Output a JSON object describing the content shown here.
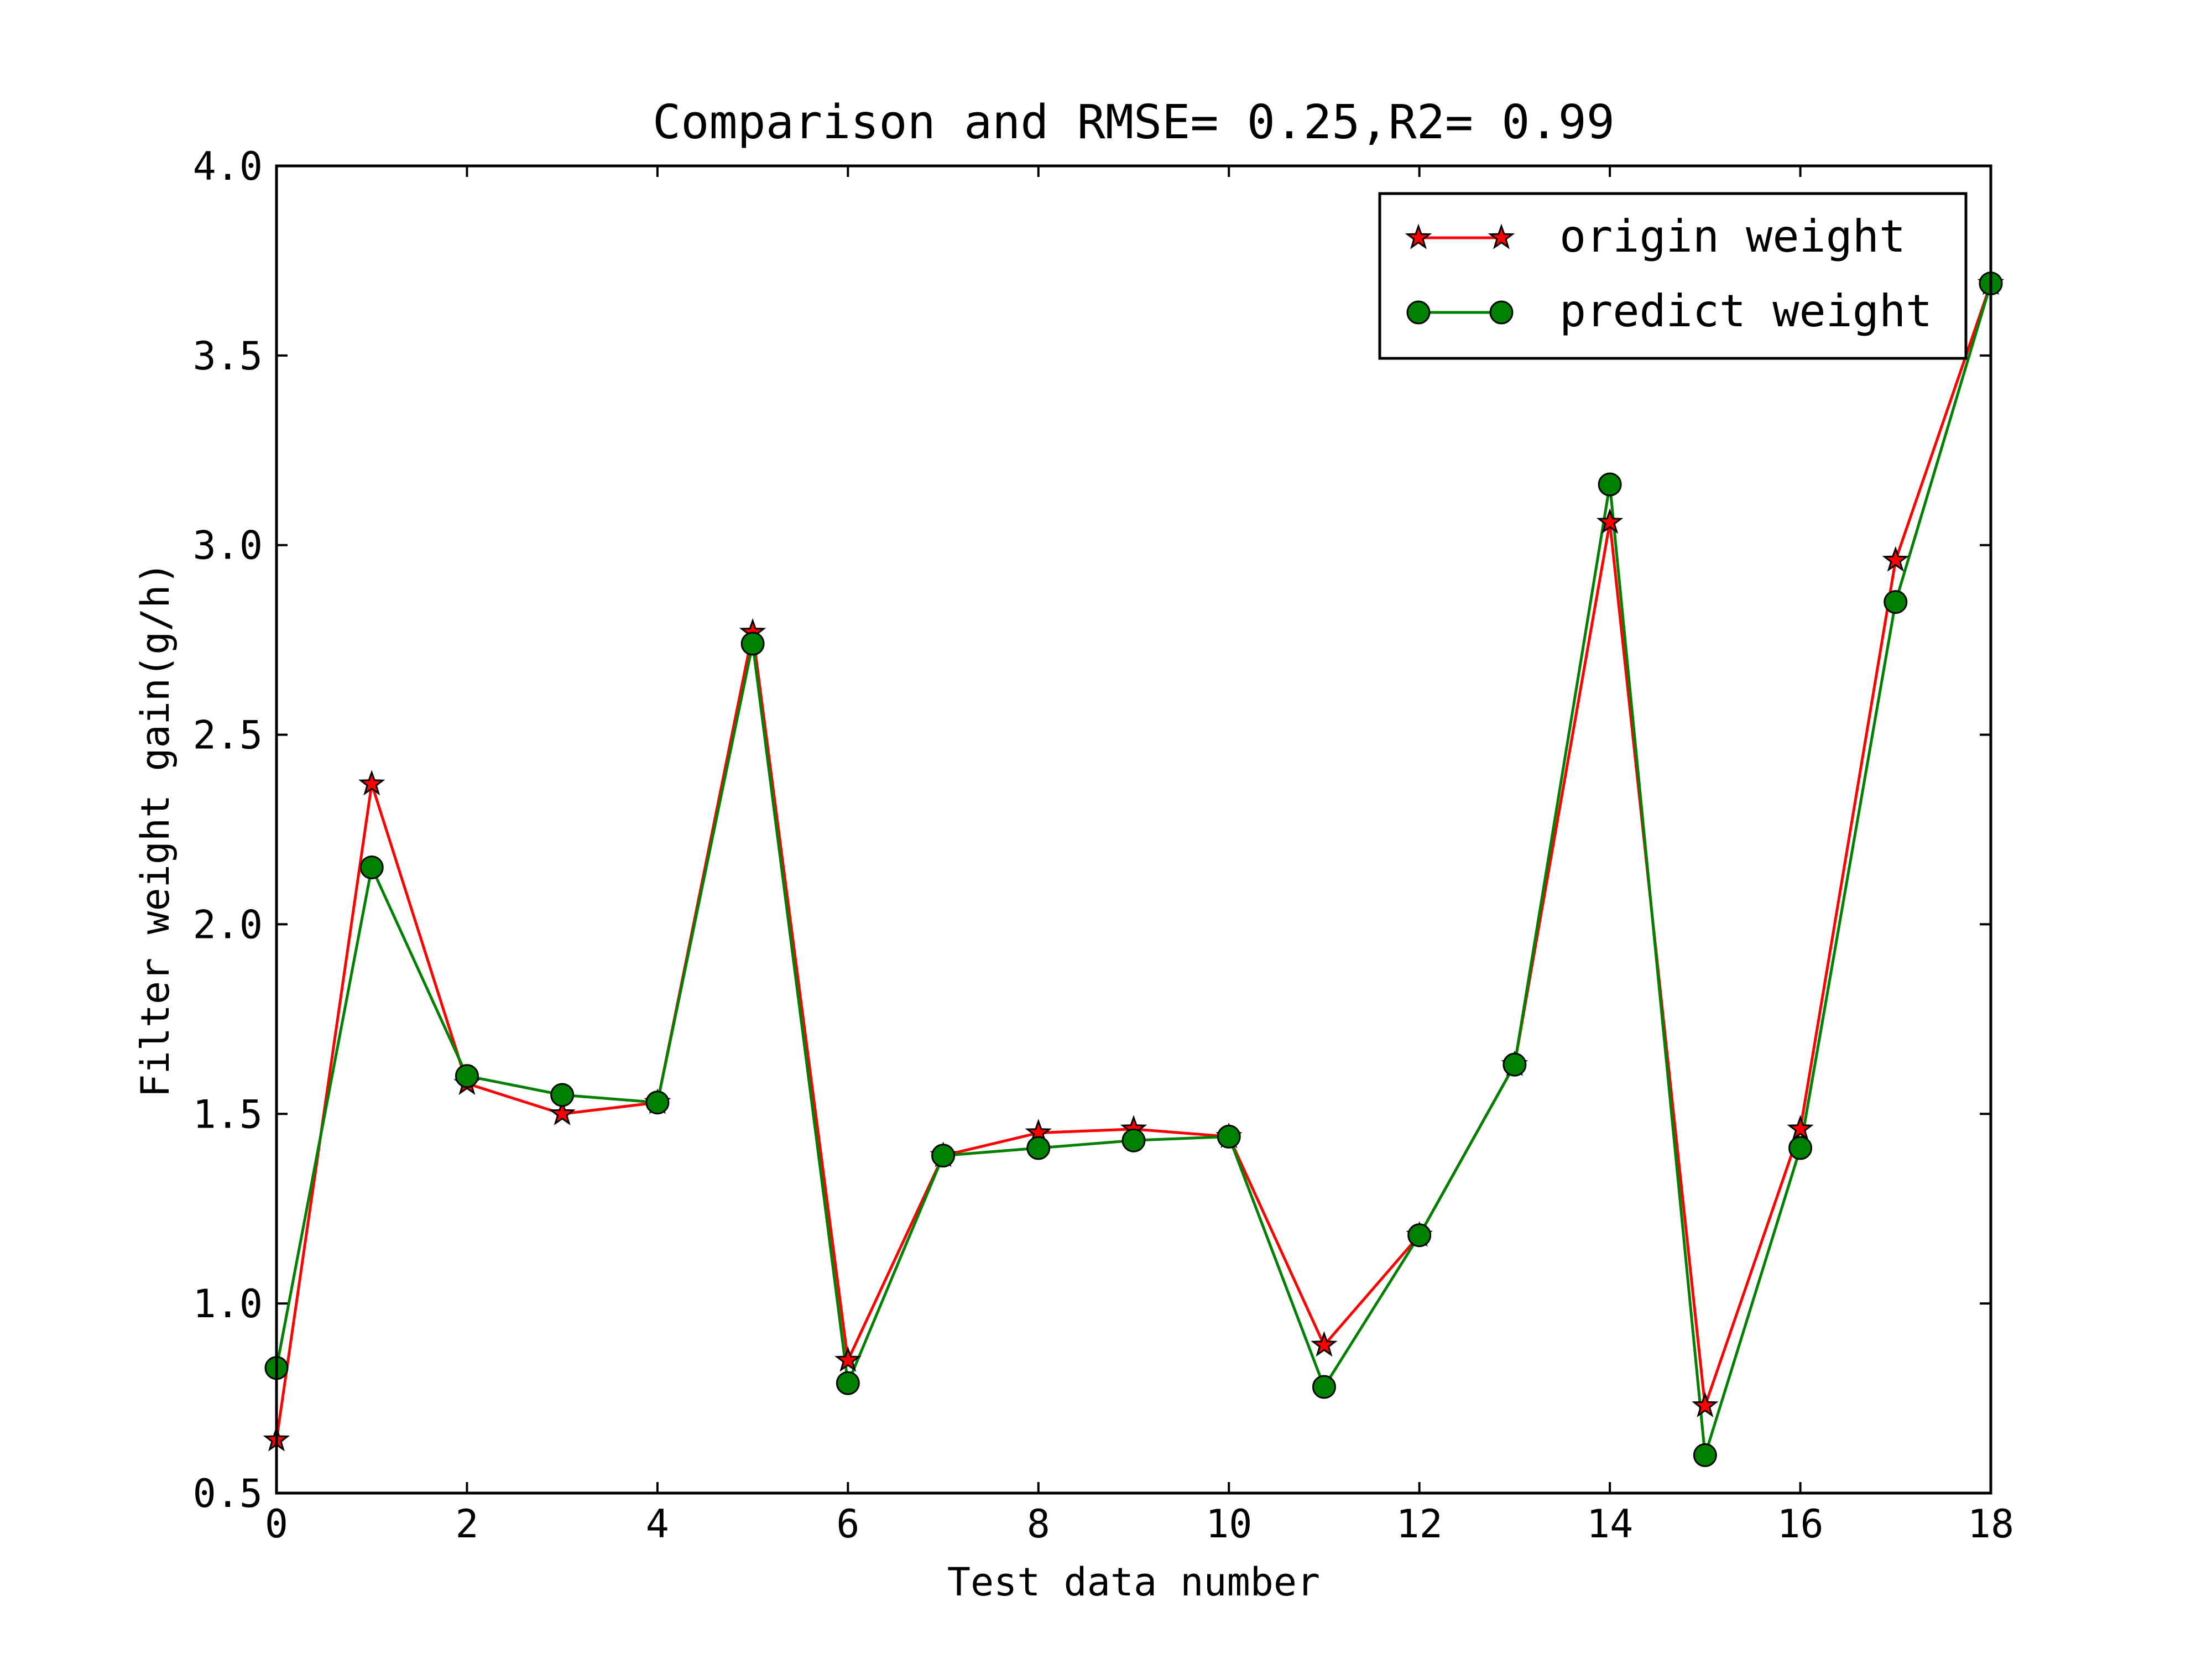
{
  "chart_data": {
    "type": "line",
    "title": "Comparison and RMSE= 0.25,R2= 0.99",
    "xlabel": "Test data number",
    "ylabel": "Filter weight gain(g/h)",
    "xlim": [
      0,
      18
    ],
    "ylim": [
      0.5,
      4.0
    ],
    "xticks": [
      0,
      2,
      4,
      6,
      8,
      10,
      12,
      14,
      16,
      18
    ],
    "xtick_labels": [
      "0",
      "2",
      "4",
      "6",
      "8",
      "10",
      "12",
      "14",
      "16",
      "18"
    ],
    "yticks": [
      0.5,
      1.0,
      1.5,
      2.0,
      2.5,
      3.0,
      3.5,
      4.0
    ],
    "ytick_labels": [
      "0.5",
      "1.0",
      "1.5",
      "2.0",
      "2.5",
      "3.0",
      "3.5",
      "4.0"
    ],
    "grid": false,
    "legend_position": "top-right",
    "x": [
      0,
      1,
      2,
      3,
      4,
      5,
      6,
      7,
      8,
      9,
      10,
      11,
      12,
      13,
      14,
      15,
      16,
      17,
      18
    ],
    "series": [
      {
        "name": "origin weight",
        "marker": "star",
        "color": "#ff0000",
        "values": [
          0.64,
          2.37,
          1.58,
          1.5,
          1.53,
          2.77,
          0.85,
          1.39,
          1.45,
          1.46,
          1.44,
          0.89,
          1.18,
          1.63,
          3.06,
          0.73,
          1.46,
          2.96,
          3.69
        ]
      },
      {
        "name": "predict weight",
        "marker": "circle",
        "color": "#008000",
        "values": [
          0.83,
          2.15,
          1.6,
          1.55,
          1.53,
          2.74,
          0.79,
          1.39,
          1.41,
          1.43,
          1.44,
          0.78,
          1.18,
          1.63,
          3.16,
          0.6,
          1.41,
          2.85,
          3.69
        ]
      }
    ]
  }
}
